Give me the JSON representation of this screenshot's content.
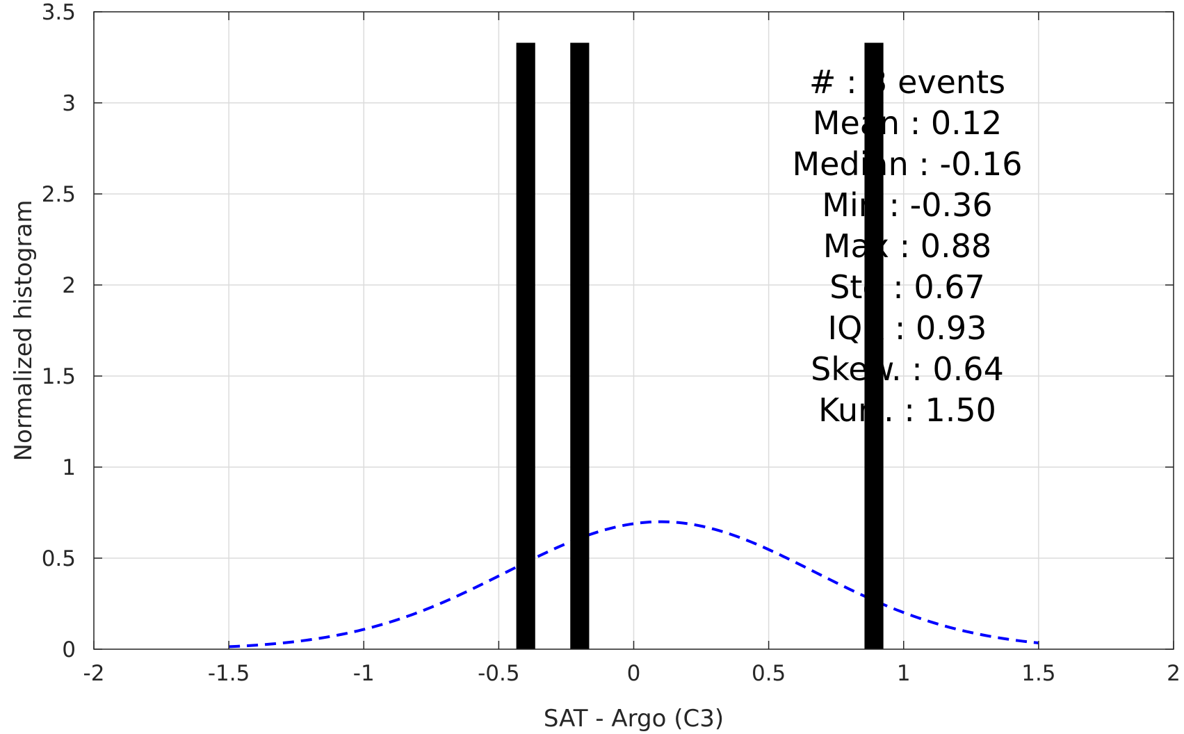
{
  "chart_data": {
    "type": "bar",
    "xlabel": "SAT - Argo (C3)",
    "ylabel": "Normalized histogram",
    "xlim": [
      -2,
      2
    ],
    "ylim": [
      0,
      3.5
    ],
    "grid": true,
    "xticks": [
      -2,
      -1.5,
      -1,
      -0.5,
      0,
      0.5,
      1,
      1.5,
      2
    ],
    "xtick_labels": [
      "-2",
      "-1.5",
      "-1",
      "-0.5",
      "0",
      "0.5",
      "1",
      "1.5",
      "2"
    ],
    "yticks": [
      0,
      0.5,
      1,
      1.5,
      2,
      2.5,
      3,
      3.5
    ],
    "ytick_labels": [
      "0",
      "0.5",
      "1",
      "1.5",
      "2",
      "2.5",
      "3",
      "3.5"
    ],
    "bars": {
      "centers": [
        -0.4,
        -0.2,
        0.89
      ],
      "width": 0.07,
      "values": [
        3.33,
        3.33,
        3.33
      ],
      "color": "#000000"
    },
    "fit_curve": {
      "style": "dashed",
      "color": "#0000ff",
      "mean": 0.1,
      "std": 0.57,
      "peak": 0.7,
      "x_range": [
        -1.5,
        1.5
      ]
    },
    "stats_text": [
      "#  : 3 events",
      "Mean : 0.12",
      "Median : -0.16",
      "Min : -0.36",
      "Max : 0.88",
      "Std : 0.67",
      "IQR : 0.93",
      "Skew. : 0.64",
      "Kurt. : 1.50"
    ]
  }
}
